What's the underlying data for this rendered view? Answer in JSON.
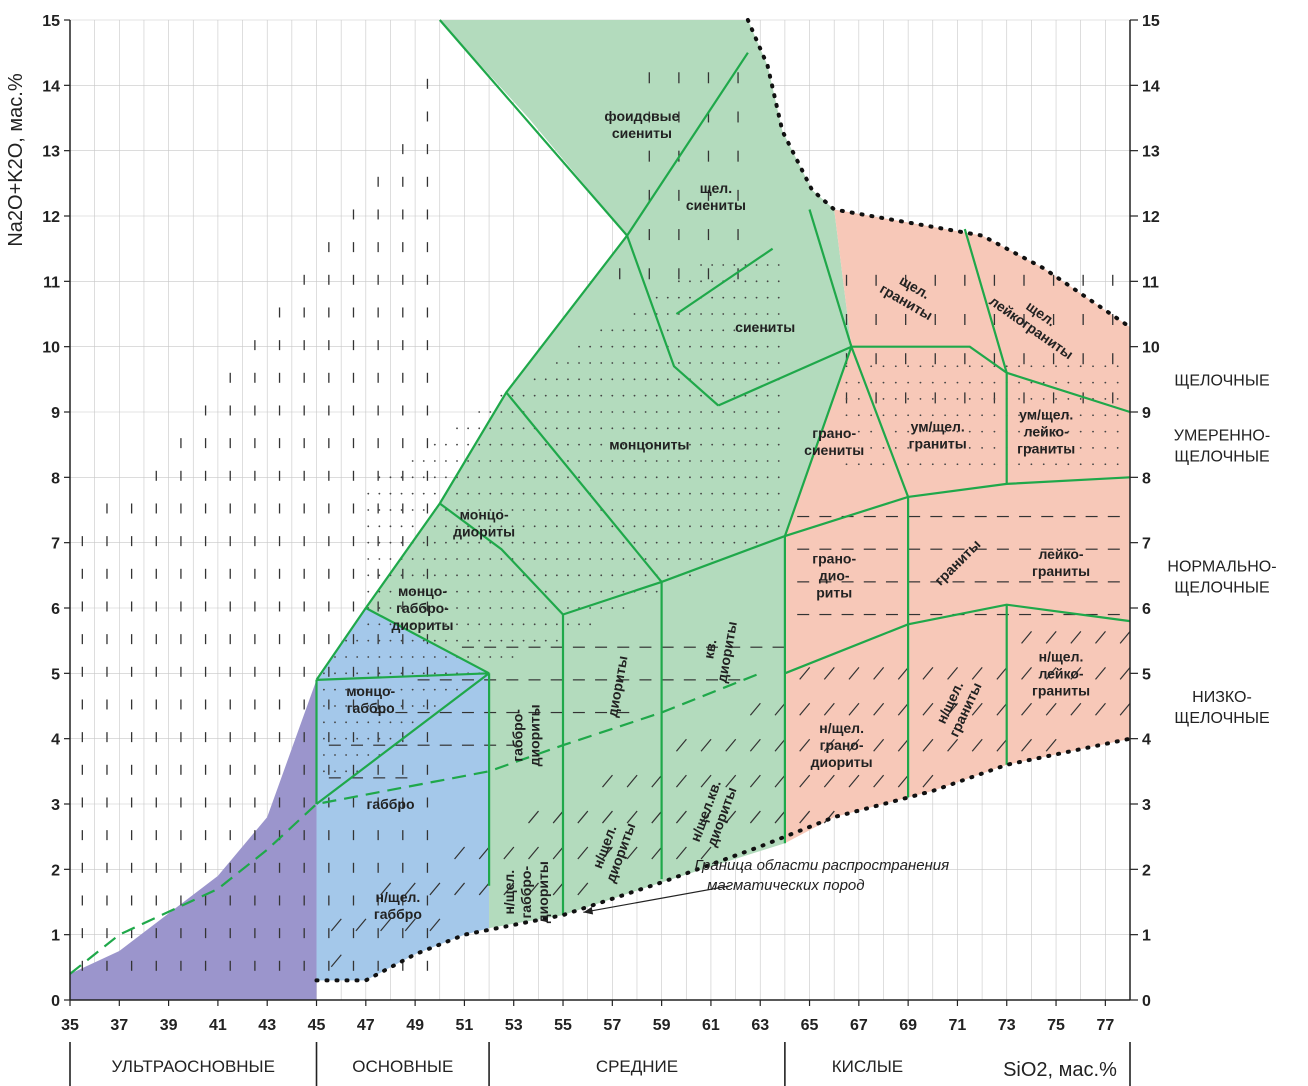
{
  "colors": {
    "ultrabasic": "#9b95cc",
    "basic": "#a4c8ea",
    "intermediate": "#b3dbbd",
    "acid": "#f7c8b8",
    "boundary_green": "#1fa84a",
    "grid": "#c7c7c7",
    "axis": "#222222"
  },
  "axes": {
    "y_label": "Na2O+K2O, мас.%",
    "x_label": "SiO2, мас.%",
    "x_range": [
      35,
      78
    ],
    "y_range": [
      0,
      15
    ],
    "x_ticks": [
      "35",
      "37",
      "39",
      "41",
      "43",
      "45",
      "47",
      "49",
      "51",
      "53",
      "55",
      "57",
      "59",
      "61",
      "63",
      "65",
      "67",
      "69",
      "71",
      "73",
      "75",
      "77"
    ],
    "y_ticks_left": [
      "0",
      "1",
      "2",
      "3",
      "4",
      "5",
      "6",
      "7",
      "8",
      "9",
      "10",
      "11",
      "12",
      "13",
      "14",
      "15"
    ],
    "y_ticks_right": [
      "0",
      "1",
      "2",
      "3",
      "4",
      "5",
      "6",
      "7",
      "8",
      "9",
      "10",
      "11",
      "12",
      "13",
      "14",
      "15"
    ]
  },
  "groups": [
    {
      "label": "УЛЬТРАОСНОВНЫЕ",
      "from": 35,
      "to": 45
    },
    {
      "label": "ОСНОВНЫЕ",
      "from": 45,
      "to": 52
    },
    {
      "label": "СРЕДНИЕ",
      "from": 52,
      "to": 64
    },
    {
      "label": "КИСЛЫЕ",
      "from": 64,
      "to": 78
    }
  ],
  "series": [
    {
      "label1": "ЩЕЛОЧНЫЕ",
      "label2": "",
      "y": 9.5
    },
    {
      "label1": "УМЕРЕННО-",
      "label2": "ЩЕЛОЧНЫЕ",
      "y": 8.5
    },
    {
      "label1": "НОРМАЛЬНО-",
      "label2": "ЩЕЛОЧНЫЕ",
      "y": 6.5
    },
    {
      "label1": "НИЗКО-",
      "label2": "ЩЕЛОЧНЫЕ",
      "y": 4.5
    }
  ],
  "fields": [
    {
      "l1": "фоидовые",
      "l2": "сиениты",
      "l3": "",
      "x": 58.2,
      "y": 13.4,
      "rot": 0
    },
    {
      "l1": "щел.",
      "l2": "сиениты",
      "l3": "",
      "x": 61.2,
      "y": 12.3,
      "rot": 0
    },
    {
      "l1": "сиениты",
      "l2": "",
      "l3": "",
      "x": 63.2,
      "y": 10.3,
      "rot": 0
    },
    {
      "l1": "монцониты",
      "l2": "",
      "l3": "",
      "x": 58.5,
      "y": 8.5,
      "rot": 0
    },
    {
      "l1": "монцо-",
      "l2": "диориты",
      "l3": "",
      "x": 51.8,
      "y": 7.3,
      "rot": 0
    },
    {
      "l1": "монцо-",
      "l2": "габбро-",
      "l3": "диориты",
      "x": 49.3,
      "y": 6.0,
      "rot": 0
    },
    {
      "l1": "монцо-",
      "l2": "габбро",
      "l3": "",
      "x": 47.2,
      "y": 4.6,
      "rot": 0
    },
    {
      "l1": "габбро",
      "l2": "",
      "l3": "",
      "x": 48.0,
      "y": 3.0,
      "rot": 0
    },
    {
      "l1": "н/щел.",
      "l2": "габбро",
      "l3": "",
      "x": 48.3,
      "y": 1.45,
      "rot": 0
    },
    {
      "l1": "габбро-",
      "l2": "диориты",
      "l3": "",
      "x": 53.5,
      "y": 4.05,
      "rot": -90
    },
    {
      "l1": "н/щел.",
      "l2": "габбро-",
      "l3": "диориты",
      "x": 53.5,
      "y": 1.65,
      "rot": -90
    },
    {
      "l1": "диориты",
      "l2": "",
      "l3": "",
      "x": 57.2,
      "y": 4.8,
      "rot": -80
    },
    {
      "l1": "н/щел.",
      "l2": "диориты",
      "l3": "",
      "x": 57.0,
      "y": 2.3,
      "rot": -70
    },
    {
      "l1": "кв.",
      "l2": "диориты",
      "l3": "",
      "x": 61.3,
      "y": 5.35,
      "rot": -80
    },
    {
      "l1": "н/щел.кв.",
      "l2": "диориты",
      "l3": "",
      "x": 61.1,
      "y": 2.85,
      "rot": -70
    },
    {
      "l1": "грано-",
      "l2": "сиениты",
      "l3": "",
      "x": 66.0,
      "y": 8.55,
      "rot": 0
    },
    {
      "l1": "щел.",
      "l2": "граниты",
      "l3": "",
      "x": 69.1,
      "y": 10.8,
      "rot": 30
    },
    {
      "l1": "щел.",
      "l2": "лейкограниты",
      "l3": "",
      "x": 74.2,
      "y": 10.4,
      "rot": 35
    },
    {
      "l1": "ум/щел.",
      "l2": "граниты",
      "l3": "",
      "x": 70.2,
      "y": 8.65,
      "rot": 0
    },
    {
      "l1": "ум/щел.",
      "l2": "лейко-",
      "l3": "граниты",
      "x": 74.6,
      "y": 8.7,
      "rot": 0
    },
    {
      "l1": "грано-",
      "l2": "дио-",
      "l3": "риты",
      "x": 66.0,
      "y": 6.5,
      "rot": 0
    },
    {
      "l1": "граниты",
      "l2": "",
      "l3": "",
      "x": 71.0,
      "y": 6.7,
      "rot": -45
    },
    {
      "l1": "лейко-",
      "l2": "граниты",
      "l3": "",
      "x": 75.2,
      "y": 6.7,
      "rot": 0
    },
    {
      "l1": "н/щел.",
      "l2": "грано-",
      "l3": "диориты",
      "x": 66.3,
      "y": 3.9,
      "rot": 0
    },
    {
      "l1": "н/щел.",
      "l2": "граниты",
      "l3": "",
      "x": 71.0,
      "y": 4.5,
      "rot": -65
    },
    {
      "l1": "н/щел.",
      "l2": "лейко-",
      "l3": "граниты",
      "x": 75.2,
      "y": 5.0,
      "rot": 0
    }
  ],
  "annotation": {
    "line1": "Граница области распространения",
    "line2": "магматических пород",
    "arrow_to": [
      55.5,
      1.25
    ],
    "text_at": [
      65.5,
      1.9
    ]
  },
  "chart_data": {
    "type": "diagram",
    "x_unit": "SiO2, мас.%",
    "y_unit": "Na2O+K2O, мас.%",
    "boundaries": [
      [
        [
          45,
          3.0
        ],
        [
          45,
          4.9
        ]
      ],
      [
        [
          45,
          3.0
        ],
        [
          52,
          5.0
        ]
      ],
      [
        [
          45,
          4.9
        ],
        [
          52,
          5.0
        ]
      ],
      [
        [
          45,
          4.9
        ],
        [
          47,
          6.0
        ],
        [
          50,
          7.6
        ],
        [
          52.7,
          9.3
        ],
        [
          57.6,
          11.7
        ],
        [
          62.5,
          14.5
        ]
      ],
      [
        [
          50,
          15
        ],
        [
          57.6,
          11.7
        ]
      ],
      [
        [
          57.6,
          11.7
        ],
        [
          59.5,
          9.7
        ],
        [
          61.3,
          9.1
        ]
      ],
      [
        [
          59.6,
          10.5
        ],
        [
          63.5,
          11.5
        ]
      ],
      [
        [
          61.3,
          9.1
        ],
        [
          66.7,
          10.0
        ]
      ],
      [
        [
          47,
          6.0
        ],
        [
          52,
          5.0
        ]
      ],
      [
        [
          50,
          7.6
        ],
        [
          52.5,
          6.9
        ],
        [
          55,
          5.9
        ]
      ],
      [
        [
          52.7,
          9.3
        ],
        [
          59,
          6.4
        ]
      ],
      [
        [
          55,
          5.9
        ],
        [
          59,
          6.4
        ],
        [
          64,
          7.1
        ],
        [
          69,
          7.7
        ],
        [
          73,
          7.9
        ],
        [
          78,
          8.0
        ]
      ],
      [
        [
          52,
          5.0
        ],
        [
          52,
          1.75
        ]
      ],
      [
        [
          55,
          5.9
        ],
        [
          55,
          1.3
        ]
      ],
      [
        [
          59,
          6.4
        ],
        [
          59,
          1.85
        ]
      ],
      [
        [
          64,
          7.1
        ],
        [
          64,
          2.4
        ]
      ],
      [
        [
          64,
          7.1
        ],
        [
          66.7,
          10.0
        ],
        [
          69,
          7.7
        ]
      ],
      [
        [
          65,
          12.1
        ],
        [
          66.7,
          10.0
        ]
      ],
      [
        [
          66.7,
          10.0
        ],
        [
          71.5,
          10.0
        ],
        [
          73,
          9.6
        ],
        [
          78,
          9.0
        ]
      ],
      [
        [
          71.3,
          11.8
        ],
        [
          73,
          9.6
        ],
        [
          73,
          7.9
        ]
      ],
      [
        [
          69,
          7.7
        ],
        [
          69,
          3.1
        ]
      ],
      [
        [
          64,
          5.0
        ],
        [
          69,
          5.75
        ],
        [
          73,
          6.05
        ],
        [
          78,
          5.8
        ]
      ],
      [
        [
          73,
          6.05
        ],
        [
          73,
          3.6
        ]
      ]
    ],
    "dashed_boundary": [
      [
        35,
        0.4
      ],
      [
        37,
        1.0
      ],
      [
        41,
        1.7
      ],
      [
        43,
        2.3
      ],
      [
        45,
        3.0
      ],
      [
        52,
        3.5
      ],
      [
        55,
        3.9
      ],
      [
        59,
        4.4
      ],
      [
        63,
        5.0
      ]
    ],
    "envelope_lower": [
      [
        45,
        0.3
      ],
      [
        47,
        0.3
      ],
      [
        49,
        0.7
      ],
      [
        51,
        1.0
      ],
      [
        55,
        1.3
      ],
      [
        59,
        1.8
      ],
      [
        63,
        2.35
      ],
      [
        66,
        2.8
      ],
      [
        70,
        3.2
      ],
      [
        73,
        3.6
      ],
      [
        78,
        4.0
      ]
    ],
    "envelope_upper": [
      [
        62.5,
        15
      ],
      [
        63.3,
        14.3
      ],
      [
        63.9,
        13.3
      ],
      [
        65.1,
        12.4
      ],
      [
        66,
        12.1
      ],
      [
        69,
        11.9
      ],
      [
        72,
        11.7
      ],
      [
        74.5,
        11.2
      ],
      [
        78,
        10.3
      ]
    ],
    "ultrabasic_fill": [
      [
        35,
        0
      ],
      [
        45,
        0
      ],
      [
        45,
        0.3
      ],
      [
        45,
        4.9
      ],
      [
        43,
        2.8
      ],
      [
        41,
        1.9
      ],
      [
        37,
        0.75
      ],
      [
        35,
        0.4
      ]
    ]
  }
}
